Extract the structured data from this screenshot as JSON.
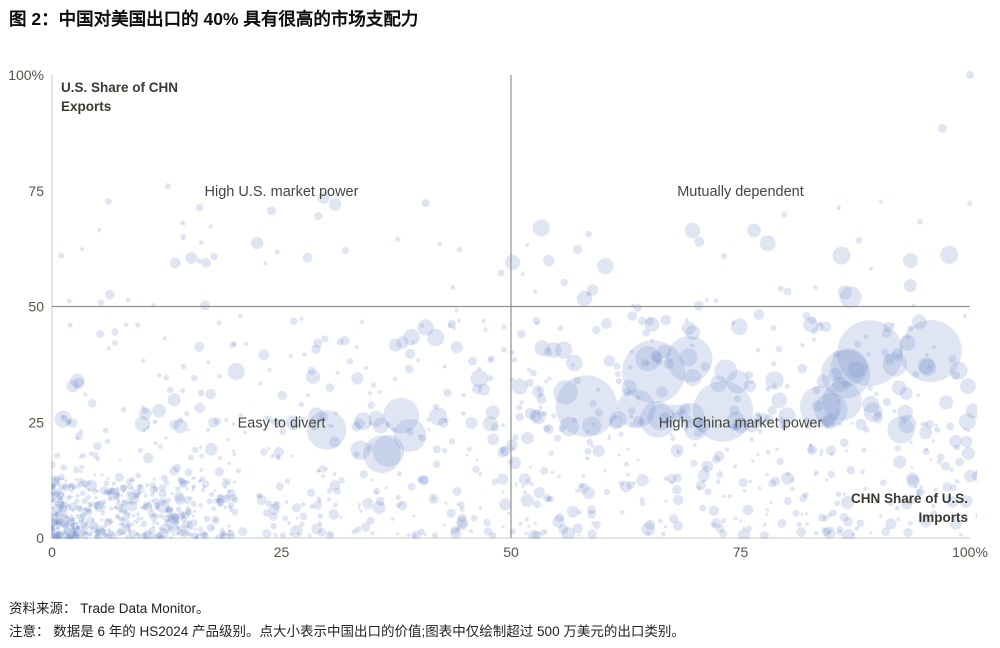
{
  "page": {
    "title": "图 2：中国对美国出口的 40% 具有很高的市场支配力",
    "source_note": "资料来源： Trade Data Monitor。",
    "method_note": "注意： 数据是 6 年的 HS2024 产品级别。点大小表示中国出口的价值;图表中仅绘制超过 500 万美元的出口类别。"
  },
  "chart_data": {
    "type": "scatter",
    "title": "图 2：中国对美国出口的 40% 具有很高的市场支配力",
    "xlabel": "CHN Share of U.S. Imports",
    "ylabel": "U.S. Share of CHN Exports",
    "xlabel_lines": [
      "CHN Share of U.S.",
      "Imports"
    ],
    "ylabel_lines": [
      "U.S. Share of CHN",
      "Exports"
    ],
    "xlim": [
      0,
      100
    ],
    "ylim": [
      0,
      100
    ],
    "grid": false,
    "legend": false,
    "x_ticks": [
      {
        "v": 0,
        "label": "0"
      },
      {
        "v": 25,
        "label": "25"
      },
      {
        "v": 50,
        "label": "50"
      },
      {
        "v": 75,
        "label": "75"
      },
      {
        "v": 100,
        "label": "100%"
      }
    ],
    "y_ticks": [
      {
        "v": 0,
        "label": "0"
      },
      {
        "v": 25,
        "label": "25"
      },
      {
        "v": 50,
        "label": "50"
      },
      {
        "v": 75,
        "label": "75"
      },
      {
        "v": 100,
        "label": "100%"
      }
    ],
    "reference_lines": {
      "x": 50,
      "y": 50
    },
    "quadrant_labels": [
      {
        "text": "High U.S. market power",
        "x": 25,
        "y": 75
      },
      {
        "text": "Mutually dependent",
        "x": 75,
        "y": 75
      },
      {
        "text": "Easy to divert",
        "x": 25,
        "y": 25
      },
      {
        "text": "High China market power",
        "x": 75,
        "y": 25
      }
    ],
    "style": {
      "point_color": "#7b93cc",
      "point_opacity": 0.24,
      "axis_color": "#c9c9c4",
      "ref_line_color": "#919191",
      "background": "#ffffff"
    },
    "seed": 20240521,
    "point_size_meaning": "bubble size = value of Chinese exports; only categories > USD 5 million plotted",
    "clusters": [
      {
        "name": "origin-very-dense",
        "n": 400,
        "x": [
          0,
          20
        ],
        "px": 1.7,
        "y": [
          0,
          13
        ],
        "py": 1.5,
        "r": [
          1.5,
          4.5
        ],
        "pr": 2.0
      },
      {
        "name": "bottom-left-band",
        "n": 320,
        "x": [
          0,
          52
        ],
        "px": 1.15,
        "y": [
          0.5,
          26
        ],
        "py": 1.35,
        "r": [
          1.5,
          6.5
        ],
        "pr": 2.3
      },
      {
        "name": "bottom-right-band",
        "n": 270,
        "x": [
          50,
          101
        ],
        "px": 0.95,
        "y": [
          0.5,
          26
        ],
        "py": 1.2,
        "r": [
          1.5,
          7
        ],
        "pr": 2.0
      },
      {
        "name": "mid-left-band",
        "n": 130,
        "x": [
          1,
          52
        ],
        "px": 1.0,
        "y": [
          24,
          47
        ],
        "py": 1.5,
        "r": [
          2,
          9
        ],
        "pr": 2.4
      },
      {
        "name": "mid-right-band",
        "n": 170,
        "x": [
          50,
          101
        ],
        "px": 1.0,
        "y": [
          24,
          47
        ],
        "py": 1.35,
        "r": [
          2,
          10
        ],
        "pr": 2.1
      },
      {
        "name": "large-bubbles-right",
        "n": 22,
        "x": [
          55,
          96
        ],
        "px": 1.0,
        "y": [
          23,
          41
        ],
        "py": 1.0,
        "r": [
          11,
          34
        ],
        "pr": 1.7
      },
      {
        "name": "large-bubbles-left",
        "n": 8,
        "x": [
          27,
          47
        ],
        "px": 1.0,
        "y": [
          18,
          30
        ],
        "py": 1.0,
        "r": [
          9,
          20
        ],
        "pr": 1.6
      },
      {
        "name": "upper-band-left",
        "n": 40,
        "x": [
          0,
          50
        ],
        "px": 1.0,
        "y": [
          46,
          74
        ],
        "py": 1.7,
        "r": [
          2,
          7
        ],
        "pr": 2.2
      },
      {
        "name": "upper-band-right",
        "n": 48,
        "x": [
          50,
          101
        ],
        "px": 1.0,
        "y": [
          46,
          74
        ],
        "py": 1.6,
        "r": [
          2,
          9
        ],
        "pr": 2.1
      }
    ],
    "notable_points": [
      {
        "x": 100,
        "y": 100,
        "r": 4
      },
      {
        "x": 97,
        "y": 88.5,
        "r": 4.5
      },
      {
        "x": 86,
        "y": 61,
        "r": 9
      },
      {
        "x": 87,
        "y": 52,
        "r": 11
      },
      {
        "x": 93.5,
        "y": 54.5,
        "r": 6.5
      },
      {
        "x": 70.5,
        "y": 64,
        "r": 5
      },
      {
        "x": 40.7,
        "y": 72.3,
        "r": 4
      },
      {
        "x": 29,
        "y": 69.5,
        "r": 4
      },
      {
        "x": 12.6,
        "y": 76,
        "r": 3
      },
      {
        "x": 1,
        "y": 61,
        "r": 3
      },
      {
        "x": 14.3,
        "y": 65,
        "r": 3
      }
    ]
  }
}
